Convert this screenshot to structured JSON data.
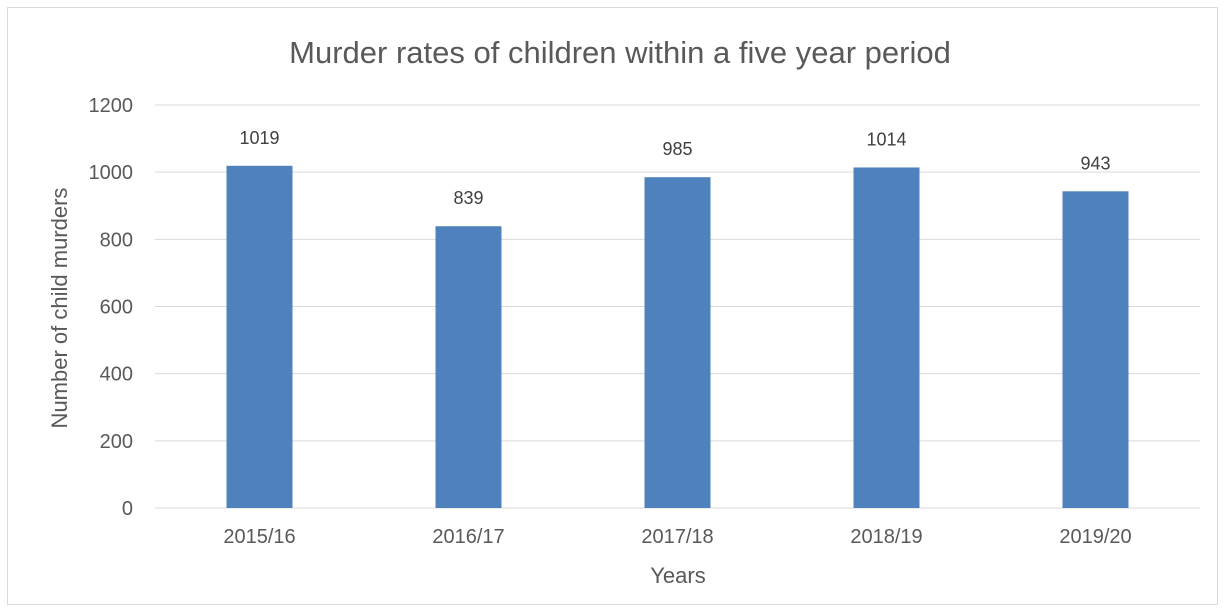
{
  "chart_data": {
    "type": "bar",
    "title": "Murder rates of children within a five year period",
    "xlabel": "Years",
    "ylabel": "Number of child murders",
    "categories": [
      "2015/16",
      "2016/17",
      "2017/18",
      "2018/19",
      "2019/20"
    ],
    "values": [
      1019,
      839,
      985,
      1014,
      943
    ],
    "data_labels": [
      "1019",
      "839",
      "985",
      "1014",
      "943"
    ],
    "ylim": [
      0,
      1200
    ],
    "yticks": [
      0,
      200,
      400,
      600,
      800,
      1000,
      1200
    ],
    "ytick_labels": [
      "0",
      "200",
      "400",
      "600",
      "800",
      "1000",
      "1200"
    ],
    "grid": true,
    "legend": "none",
    "colors": {
      "bar": "#4f81bd",
      "text": "#595959",
      "grid": "#d9d9d9"
    }
  }
}
